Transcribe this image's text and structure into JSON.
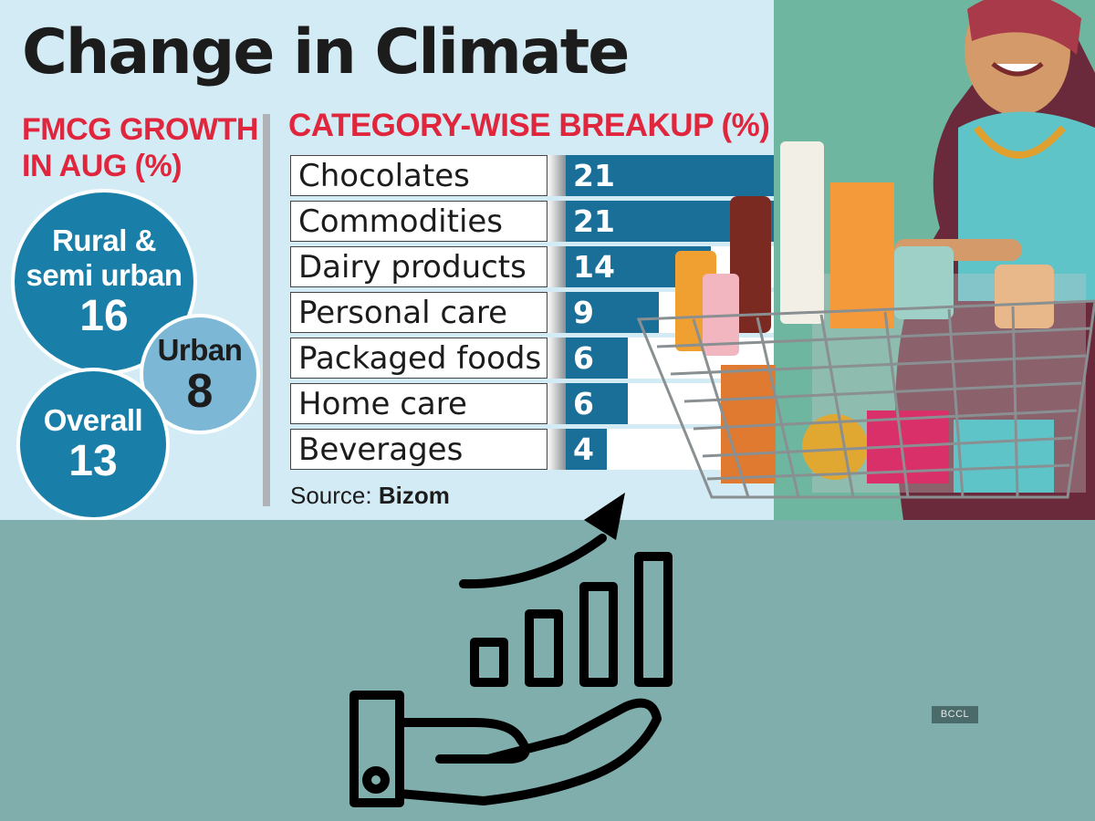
{
  "title": "Change in Climate",
  "left_panel": {
    "heading_line1": "FMCG GROWTH",
    "heading_line2": "IN AUG (%)",
    "bubbles": [
      {
        "label_line1": "Rural &",
        "label_line2": "semi urban",
        "value": "16"
      },
      {
        "label_line1": "Urban",
        "value": "8"
      },
      {
        "label_line1": "Overall",
        "value": "13"
      }
    ]
  },
  "right_panel": {
    "heading": "CATEGORY-WISE BREAKUP (%)"
  },
  "chart_data": {
    "type": "bar",
    "orientation": "horizontal",
    "title": "CATEGORY-WISE BREAKUP (%)",
    "categories": [
      "Chocolates",
      "Commodities",
      "Dairy products",
      "Personal care",
      "Packaged foods",
      "Home care",
      "Beverages"
    ],
    "values": [
      21,
      21,
      14,
      9,
      6,
      6,
      4
    ],
    "xlim": [
      0,
      21
    ],
    "grid": false,
    "bar_color": "#1a6f99"
  },
  "source": {
    "label": "Source:",
    "name": "Bizom"
  },
  "watermark": "BCCL",
  "colors": {
    "accent_red": "#e0263d",
    "bubble_dark": "#1a7fa8",
    "bubble_light": "#7cb8d6",
    "panel_bg": "#d3ebf5",
    "bottom_bg": "#7faead"
  },
  "decorations": [
    "woman-with-shopping-cart-illustration",
    "hand-holding-growth-chart-icon"
  ]
}
